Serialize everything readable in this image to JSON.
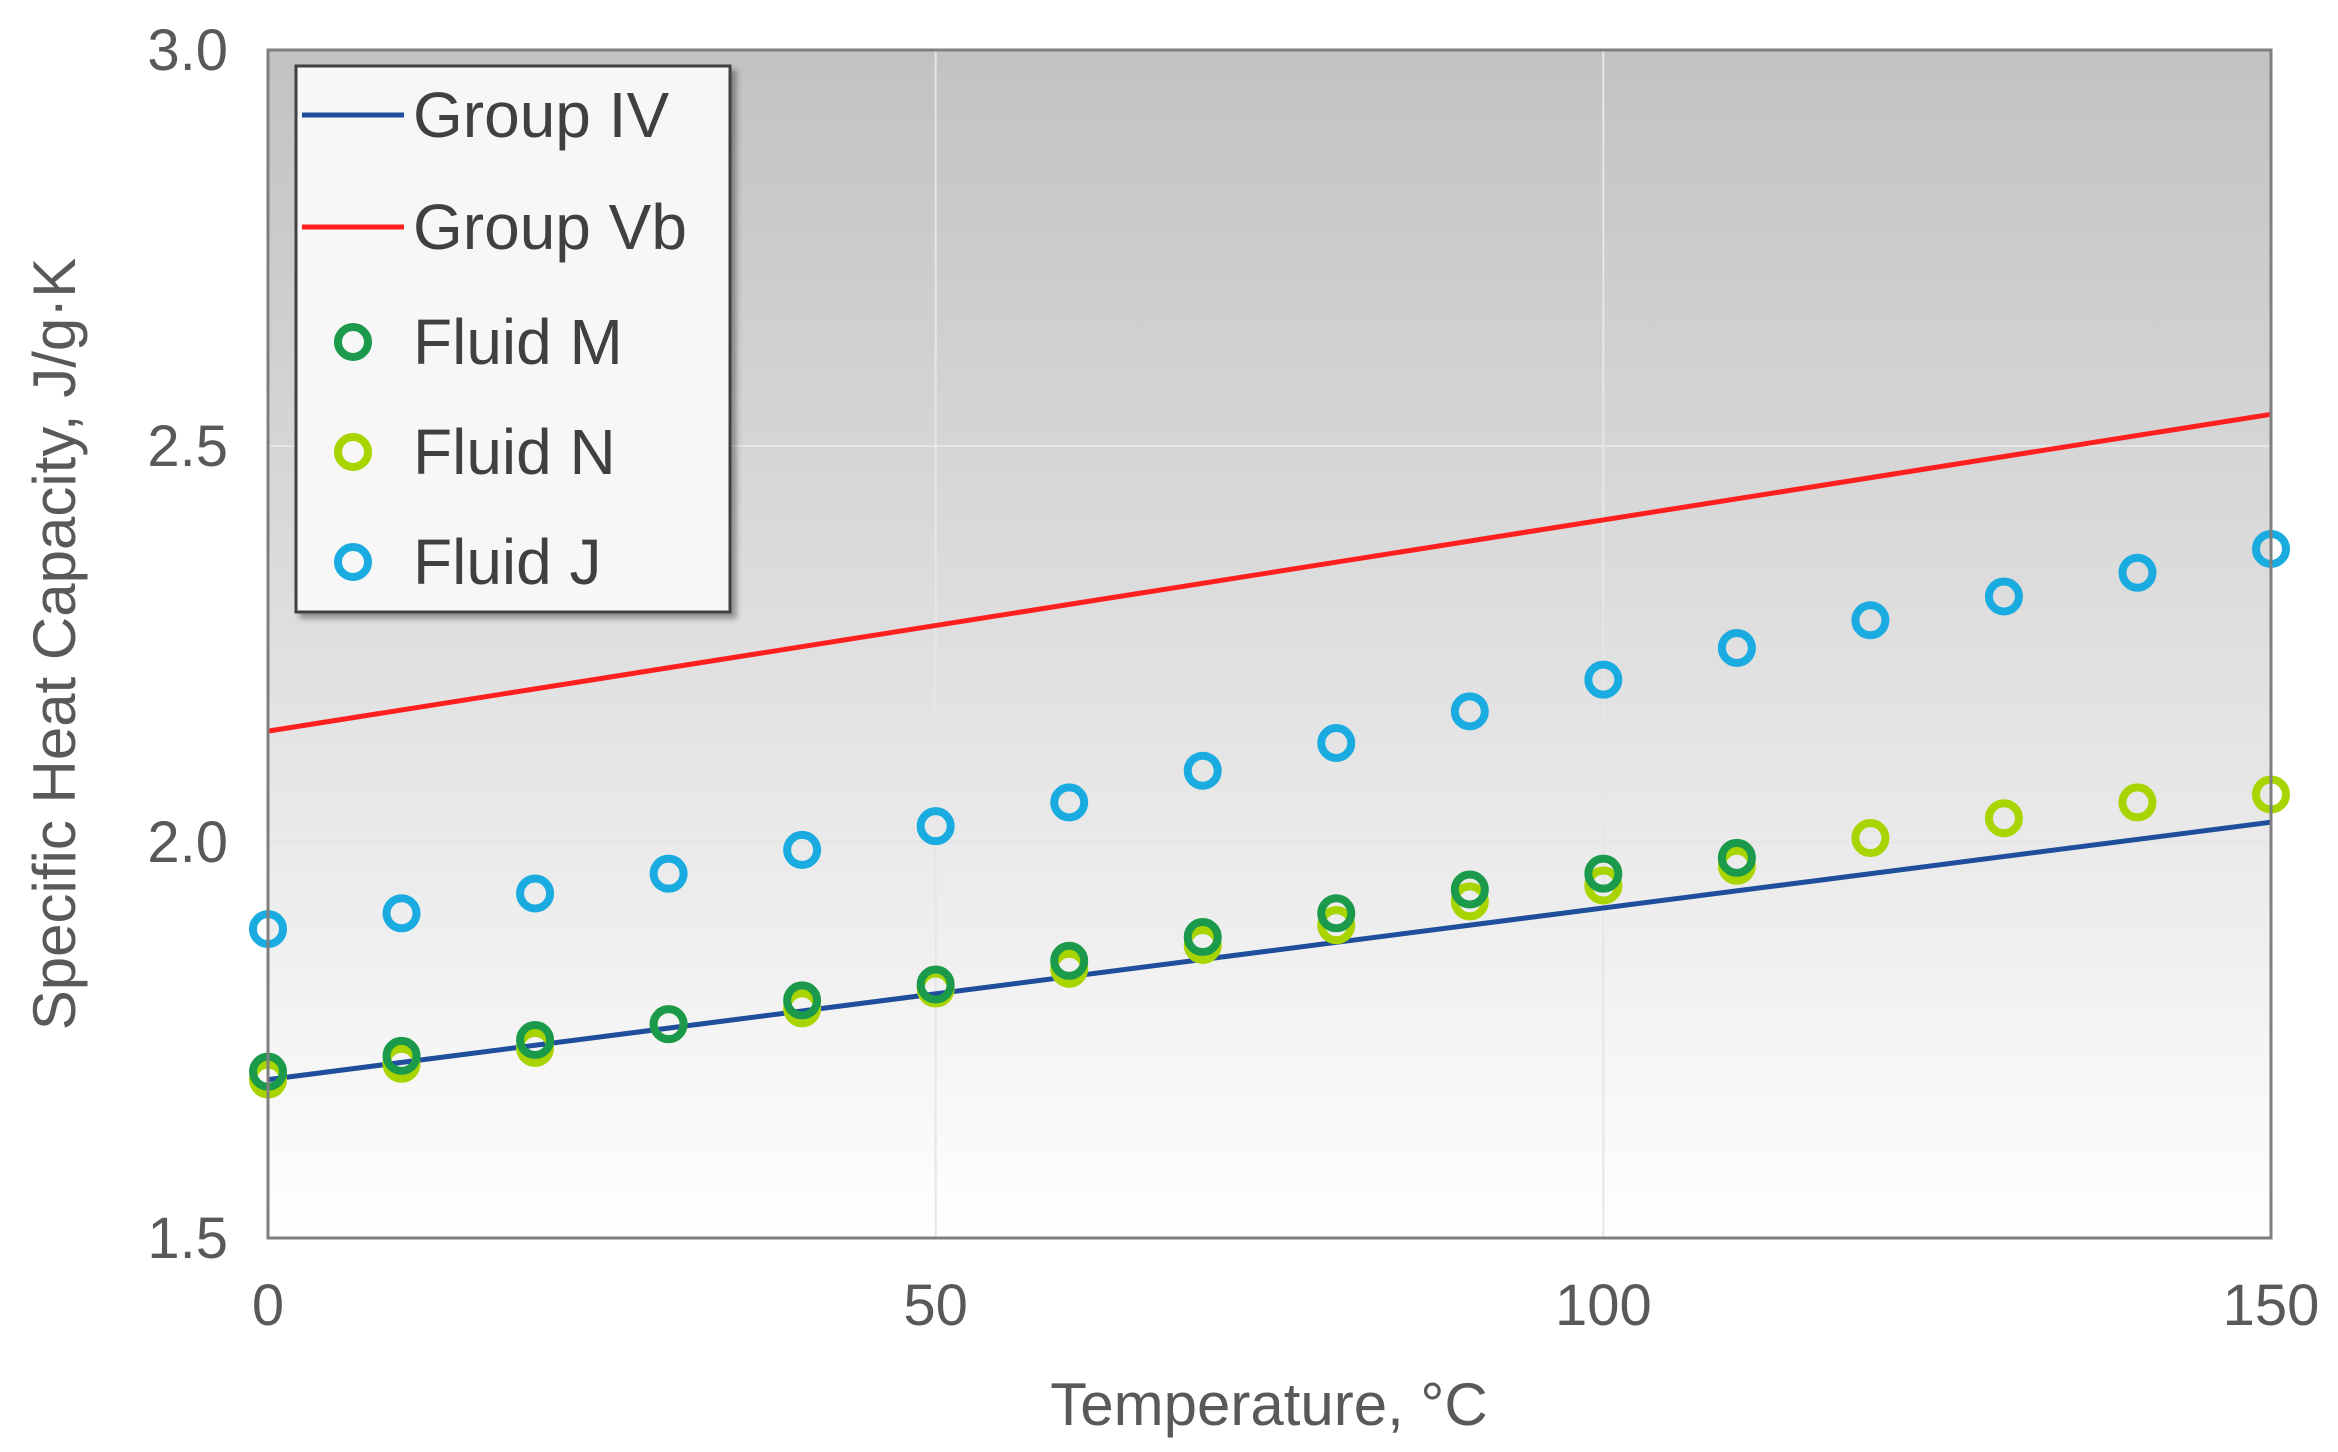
{
  "chart_data": {
    "type": "scatter",
    "title": "",
    "xlabel": "Temperature, °C",
    "ylabel": "Specific Heat Capacity, J/g·K",
    "xlim": [
      0,
      150
    ],
    "ylim": [
      1.5,
      3.0
    ],
    "xticks": [
      "0",
      "50",
      "100",
      "150"
    ],
    "yticks": [
      "1.5",
      "2.0",
      "2.5",
      "3.0"
    ],
    "grid": true,
    "legend_position": "top-left",
    "series": [
      {
        "name": "Group IV",
        "kind": "line",
        "color": "#1f4e9c",
        "x": [
          0,
          150
        ],
        "y": [
          1.7,
          2.025
        ]
      },
      {
        "name": "Group Vb",
        "kind": "line",
        "color": "#ff1f1f",
        "x": [
          0,
          150
        ],
        "y": [
          2.14,
          2.54
        ]
      },
      {
        "name": "Fluid M",
        "kind": "marker",
        "color": "#1a9a4a",
        "x": [
          0,
          10,
          20,
          30,
          40,
          50,
          60,
          70,
          80,
          90,
          100,
          110
        ],
        "y": [
          1.71,
          1.73,
          1.75,
          1.77,
          1.8,
          1.82,
          1.85,
          1.88,
          1.91,
          1.94,
          1.96,
          1.98
        ]
      },
      {
        "name": "Fluid N",
        "kind": "marker",
        "color": "#a8d400",
        "x": [
          0,
          10,
          20,
          30,
          40,
          50,
          60,
          70,
          80,
          90,
          100,
          110,
          120,
          130,
          140,
          150
        ],
        "y": [
          1.7,
          1.72,
          1.74,
          1.77,
          1.79,
          1.815,
          1.84,
          1.87,
          1.895,
          1.925,
          1.945,
          1.97,
          2.005,
          2.03,
          2.05,
          2.06
        ]
      },
      {
        "name": "Fluid J",
        "kind": "marker",
        "color": "#1aabe0",
        "x": [
          0,
          10,
          20,
          30,
          40,
          50,
          60,
          70,
          80,
          90,
          100,
          110,
          120,
          130,
          140,
          150
        ],
        "y": [
          1.89,
          1.91,
          1.935,
          1.96,
          1.99,
          2.02,
          2.05,
          2.09,
          2.125,
          2.165,
          2.205,
          2.245,
          2.28,
          2.31,
          2.34,
          2.37
        ]
      }
    ]
  }
}
